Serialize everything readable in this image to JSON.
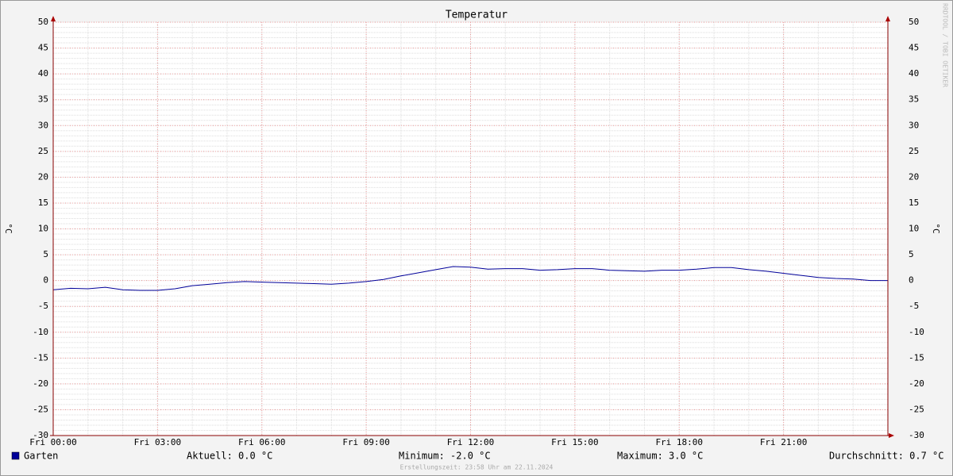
{
  "chart_data": {
    "type": "line",
    "title": "Temperatur",
    "y_label": "°C",
    "y2_label": "°C",
    "watermark": "RRDTOOL / TOBI OETIKER",
    "x": [
      0,
      0.5,
      1,
      1.5,
      2,
      2.5,
      3,
      3.5,
      4,
      4.5,
      5,
      5.5,
      6,
      6.5,
      7,
      7.5,
      8,
      8.5,
      9,
      9.5,
      10,
      10.5,
      11,
      11.5,
      12,
      12.5,
      13,
      13.5,
      14,
      14.5,
      15,
      15.5,
      16,
      16.5,
      17,
      17.5,
      18,
      18.5,
      19,
      19.5,
      20,
      20.5,
      21,
      21.5,
      22,
      22.5,
      23,
      23.5,
      24
    ],
    "series": [
      {
        "name": "Garten",
        "color": "#000099",
        "values": [
          -1.8,
          -1.5,
          -1.6,
          -1.3,
          -1.8,
          -1.9,
          -1.9,
          -1.6,
          -1.0,
          -0.7,
          -0.4,
          -0.2,
          -0.3,
          -0.4,
          -0.5,
          -0.6,
          -0.7,
          -0.5,
          -0.2,
          0.2,
          0.9,
          1.5,
          2.1,
          2.7,
          2.6,
          2.2,
          2.3,
          2.3,
          2.0,
          2.1,
          2.3,
          2.3,
          2.0,
          1.9,
          1.8,
          2.0,
          2.0,
          2.2,
          2.5,
          2.5,
          2.1,
          1.8,
          1.4,
          1.0,
          0.6,
          0.4,
          0.3,
          0.0,
          0.0
        ]
      }
    ],
    "xlim": [
      0,
      24
    ],
    "xticks": [
      {
        "value": 0,
        "label": "Fri 00:00"
      },
      {
        "value": 3,
        "label": "Fri 03:00"
      },
      {
        "value": 6,
        "label": "Fri 06:00"
      },
      {
        "value": 9,
        "label": "Fri 09:00"
      },
      {
        "value": 12,
        "label": "Fri 12:00"
      },
      {
        "value": 15,
        "label": "Fri 15:00"
      },
      {
        "value": 18,
        "label": "Fri 18:00"
      },
      {
        "value": 21,
        "label": "Fri 21:00"
      }
    ],
    "ylim": [
      -30,
      50
    ],
    "yticks": [
      -30,
      -25,
      -20,
      -15,
      -10,
      -5,
      0,
      5,
      10,
      15,
      20,
      25,
      30,
      35,
      40,
      45,
      50
    ],
    "grid": true,
    "stats": [
      "Aktuell: 0.0 °C",
      "Minimum: -2.0 °C",
      "Maximum: 3.0 °C",
      "Durchschnitt: 0.7 °C"
    ],
    "footer": "Erstellungszeit: 23:58 Uhr am 22.11.2024"
  }
}
